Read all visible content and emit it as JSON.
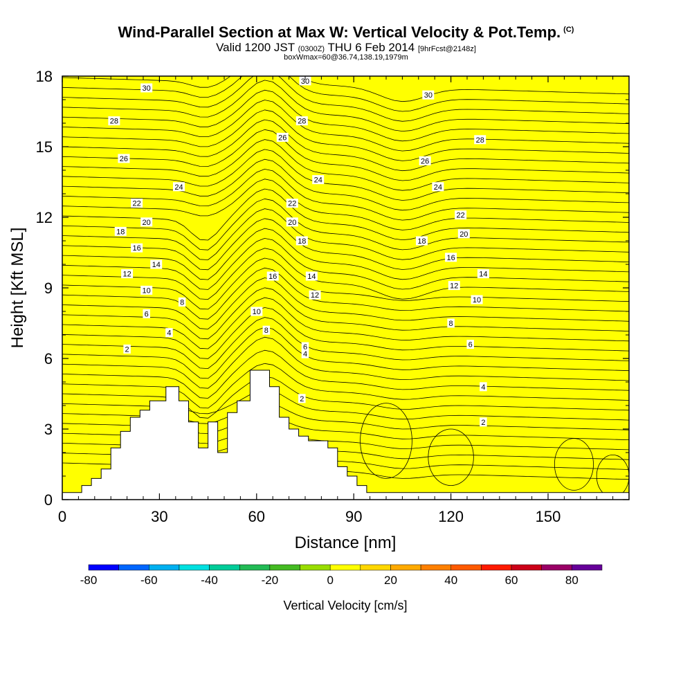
{
  "header": {
    "title": "Wind-Parallel Section at Max W: Vertical Velocity & Pot.Temp.",
    "title_mark": "(C)",
    "valid_a": "Valid 1200 JST",
    "valid_b": "(0300Z)",
    "valid_c": "THU 6 Feb 2014",
    "valid_d": "[9hrFcst@2148z]",
    "box_info": "boxWmax=60@36.74,138.19,1979m"
  },
  "chart_data": {
    "type": "heatmap",
    "xlabel": "Distance [nm]",
    "ylabel": "Height [Kft MSL]",
    "xlim": [
      0,
      175
    ],
    "ylim": [
      0,
      18
    ],
    "xticks": [
      0,
      30,
      60,
      90,
      120,
      150
    ],
    "yticks": [
      0,
      3,
      6,
      9,
      12,
      15,
      18
    ],
    "colorbar": {
      "label": "Vertical Velocity [cm/s]",
      "ticks": [
        -80,
        -60,
        -40,
        -20,
        0,
        20,
        40,
        60,
        80
      ],
      "bins": [
        -80,
        -70,
        -60,
        -50,
        -40,
        -30,
        -20,
        -10,
        0,
        10,
        20,
        30,
        40,
        50,
        60,
        70,
        80,
        90
      ],
      "colors": [
        "#0000ff",
        "#0066ff",
        "#00b0f0",
        "#00e0e0",
        "#00cc99",
        "#22bb55",
        "#44bb22",
        "#99dd00",
        "#ffff00",
        "#ffd700",
        "#ffaa00",
        "#ff8000",
        "#ff5a00",
        "#ff1a00",
        "#cc0018",
        "#990066",
        "#660099"
      ]
    },
    "theta_contour_labels": [
      {
        "value": "2",
        "x": 20,
        "y": 6.4
      },
      {
        "value": "4",
        "x": 33,
        "y": 7.1
      },
      {
        "value": "6",
        "x": 26,
        "y": 7.9
      },
      {
        "value": "8",
        "x": 37,
        "y": 8.4
      },
      {
        "value": "10",
        "x": 26,
        "y": 8.9
      },
      {
        "value": "12",
        "x": 20,
        "y": 9.6
      },
      {
        "value": "14",
        "x": 29,
        "y": 10.0
      },
      {
        "value": "16",
        "x": 23,
        "y": 10.7
      },
      {
        "value": "18",
        "x": 18,
        "y": 11.4
      },
      {
        "value": "20",
        "x": 26,
        "y": 11.8
      },
      {
        "value": "22",
        "x": 23,
        "y": 12.6
      },
      {
        "value": "24",
        "x": 36,
        "y": 13.3
      },
      {
        "value": "26",
        "x": 19,
        "y": 14.5
      },
      {
        "value": "28",
        "x": 16,
        "y": 16.1
      },
      {
        "value": "30",
        "x": 26,
        "y": 17.5
      },
      {
        "value": "10",
        "x": 60,
        "y": 8.0
      },
      {
        "value": "8",
        "x": 63,
        "y": 7.2
      },
      {
        "value": "6",
        "x": 75,
        "y": 6.5
      },
      {
        "value": "16",
        "x": 65,
        "y": 9.5
      },
      {
        "value": "18",
        "x": 74,
        "y": 11.0
      },
      {
        "value": "20",
        "x": 71,
        "y": 11.8
      },
      {
        "value": "22",
        "x": 71,
        "y": 12.6
      },
      {
        "value": "26",
        "x": 68,
        "y": 15.4
      },
      {
        "value": "28",
        "x": 74,
        "y": 16.1
      },
      {
        "value": "30",
        "x": 75,
        "y": 17.8
      },
      {
        "value": "24",
        "x": 79,
        "y": 13.6
      },
      {
        "value": "14",
        "x": 77,
        "y": 9.5
      },
      {
        "value": "12",
        "x": 78,
        "y": 8.7
      },
      {
        "value": "4",
        "x": 75,
        "y": 6.2
      },
      {
        "value": "2",
        "x": 74,
        "y": 4.3
      },
      {
        "value": "30",
        "x": 113,
        "y": 17.2
      },
      {
        "value": "28",
        "x": 129,
        "y": 15.3
      },
      {
        "value": "26",
        "x": 112,
        "y": 14.4
      },
      {
        "value": "24",
        "x": 116,
        "y": 13.3
      },
      {
        "value": "22",
        "x": 123,
        "y": 12.1
      },
      {
        "value": "20",
        "x": 124,
        "y": 11.3
      },
      {
        "value": "18",
        "x": 111,
        "y": 11.0
      },
      {
        "value": "16",
        "x": 120,
        "y": 10.3
      },
      {
        "value": "14",
        "x": 130,
        "y": 9.6
      },
      {
        "value": "12",
        "x": 121,
        "y": 9.1
      },
      {
        "value": "10",
        "x": 128,
        "y": 8.5
      },
      {
        "value": "8",
        "x": 120,
        "y": 7.5
      },
      {
        "value": "6",
        "x": 126,
        "y": 6.6
      },
      {
        "value": "4",
        "x": 130,
        "y": 4.8
      },
      {
        "value": "2",
        "x": 130,
        "y": 3.3
      }
    ]
  }
}
